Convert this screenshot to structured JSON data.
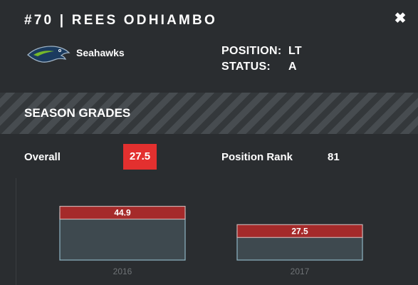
{
  "player": {
    "title": "#70 | REES ODHIAMBO",
    "team": "Seahawks",
    "position_label": "POSITION:",
    "position_value": "LT",
    "status_label": "STATUS:",
    "status_value": "A"
  },
  "section_title": "SEASON GRADES",
  "stats": {
    "overall_label": "Overall",
    "overall_value": "27.5",
    "rank_label": "Position Rank",
    "rank_value": "81"
  },
  "icons": {
    "close": "close-icon",
    "team_logo": "seahawks-logo"
  },
  "colors": {
    "background": "#2a2d30",
    "accent_red": "#e3302f",
    "bar_red": "#a52a2a",
    "bar_fill": "#3e494f",
    "bar_border": "#8fb5c4"
  },
  "chart_data": {
    "type": "bar",
    "categories": [
      "2016",
      "2017"
    ],
    "values": [
      44.9,
      27.5
    ],
    "ylim": [
      0,
      100
    ],
    "grid": false
  }
}
